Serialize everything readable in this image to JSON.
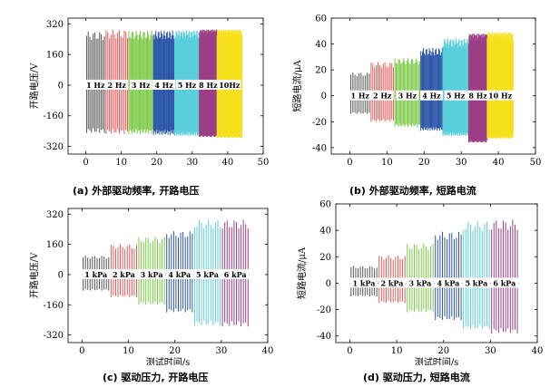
{
  "colors": {
    "seg1": "#555555",
    "seg2": "#e25a5a",
    "seg3": "#7ac943",
    "seg4": "#2b55a8",
    "seg5": "#5bcfdc",
    "seg6": "#9b3f86",
    "seg7": "#f7e11c"
  },
  "chart_data": [
    {
      "id": "a",
      "type": "line",
      "style": "oscillation",
      "ylabel": "开路电压/V",
      "xlabel": "测试时间/s",
      "xlim": [
        -5,
        50
      ],
      "xticks": [
        0,
        10,
        20,
        30,
        40,
        50
      ],
      "ylim": [
        -360,
        350
      ],
      "yticks": [
        320,
        160,
        0,
        -160,
        -320
      ],
      "caption": "(a) 外部驱动频率, 开路电压",
      "segments": [
        {
          "label": "1 Hz",
          "start": 0,
          "end": 5.5,
          "amp_pos": 280,
          "amp_neg": -250,
          "color": "#555555",
          "n": 12
        },
        {
          "label": "2 Hz",
          "start": 5.5,
          "end": 12,
          "amp_pos": 290,
          "amp_neg": -255,
          "color": "#e25a5a",
          "n": 14
        },
        {
          "label": "3 Hz",
          "start": 12,
          "end": 19,
          "amp_pos": 285,
          "amp_neg": -255,
          "color": "#7ac943",
          "n": 24
        },
        {
          "label": "4 Hz",
          "start": 19,
          "end": 25,
          "amp_pos": 285,
          "amp_neg": -260,
          "color": "#2b55a8",
          "n": 28
        },
        {
          "label": "5 Hz",
          "start": 25,
          "end": 32,
          "amp_pos": 285,
          "amp_neg": -265,
          "color": "#5bcfdc",
          "n": 36
        },
        {
          "label": "8 Hz",
          "start": 32,
          "end": 37,
          "amp_pos": 290,
          "amp_neg": -270,
          "color": "#9b3f86",
          "n": 48
        },
        {
          "label": "10Hz",
          "start": 37,
          "end": 44,
          "amp_pos": 290,
          "amp_neg": -275,
          "color": "#f7e11c",
          "n": 64
        }
      ]
    },
    {
      "id": "b",
      "type": "line",
      "style": "oscillation",
      "ylabel": "短路电流/μA",
      "xlabel": "测试时间/s",
      "xlim": [
        -5,
        50
      ],
      "xticks": [
        0,
        10,
        20,
        30,
        40,
        50
      ],
      "ylim": [
        -45,
        60
      ],
      "yticks": [
        60,
        40,
        20,
        0,
        -20,
        -40
      ],
      "caption": "(b) 外部驱动频率, 短路电流",
      "segments": [
        {
          "label": "1 Hz",
          "start": 0,
          "end": 5.5,
          "amp_pos": 18,
          "amp_neg": -14,
          "color": "#555555",
          "n": 10
        },
        {
          "label": "2 Hz",
          "start": 5.5,
          "end": 12,
          "amp_pos": 26,
          "amp_neg": -20,
          "color": "#e25a5a",
          "n": 14
        },
        {
          "label": "3 Hz",
          "start": 12,
          "end": 19,
          "amp_pos": 29,
          "amp_neg": -24,
          "color": "#7ac943",
          "n": 22
        },
        {
          "label": "4 Hz",
          "start": 19,
          "end": 25,
          "amp_pos": 37,
          "amp_neg": -27,
          "color": "#2b55a8",
          "n": 26
        },
        {
          "label": "5 Hz",
          "start": 25,
          "end": 32,
          "amp_pos": 44,
          "amp_neg": -31,
          "color": "#5bcfdc",
          "n": 34
        },
        {
          "label": "8 Hz",
          "start": 32,
          "end": 37,
          "amp_pos": 48,
          "amp_neg": -36,
          "color": "#9b3f86",
          "n": 44
        },
        {
          "label": "10 Hz",
          "start": 37,
          "end": 44,
          "amp_pos": 49,
          "amp_neg": -33,
          "color": "#f7e11c",
          "n": 60
        }
      ]
    },
    {
      "id": "c",
      "type": "line",
      "style": "oscillation",
      "ylabel": "开路电压/V",
      "xlabel": "测试时间/s",
      "xlim": [
        -3,
        40
      ],
      "xticks": [
        0,
        10,
        20,
        30,
        40
      ],
      "ylim": [
        -360,
        350
      ],
      "yticks": [
        320,
        160,
        0,
        -160,
        -320
      ],
      "caption": "(c) 驱动压力, 开路电压",
      "segments": [
        {
          "label": "1 kPa",
          "start": 0,
          "end": 6,
          "amp_pos": 100,
          "amp_neg": -85,
          "color": "#555555",
          "n": 12
        },
        {
          "label": "2 kPa",
          "start": 6,
          "end": 12,
          "amp_pos": 160,
          "amp_neg": -120,
          "color": "#e25a5a",
          "n": 12
        },
        {
          "label": "3 kPa",
          "start": 12,
          "end": 18,
          "amp_pos": 200,
          "amp_neg": -160,
          "color": "#7ac943",
          "n": 12
        },
        {
          "label": "4 kPa",
          "start": 18,
          "end": 24,
          "amp_pos": 230,
          "amp_neg": -200,
          "color": "#2b55a8",
          "n": 12
        },
        {
          "label": "5 kPa",
          "start": 24,
          "end": 30,
          "amp_pos": 290,
          "amp_neg": -270,
          "color": "#5bcfdc",
          "n": 12
        },
        {
          "label": "6 kPa",
          "start": 30,
          "end": 36,
          "amp_pos": 290,
          "amp_neg": -275,
          "color": "#9b3f86",
          "n": 12
        }
      ]
    },
    {
      "id": "d",
      "type": "line",
      "style": "oscillation",
      "ylabel": "短路电流/μA",
      "xlabel": "测试时间/s",
      "xlim": [
        -3,
        40
      ],
      "xticks": [
        0,
        10,
        20,
        30,
        40
      ],
      "ylim": [
        -45,
        60
      ],
      "yticks": [
        60,
        40,
        20,
        0,
        -20,
        -40
      ],
      "caption": "(d) 驱动压力, 短路电流",
      "segments": [
        {
          "label": "1 kPa",
          "start": 0,
          "end": 6,
          "amp_pos": 13,
          "amp_neg": -10,
          "color": "#555555",
          "n": 12
        },
        {
          "label": "2 kPa",
          "start": 6,
          "end": 12,
          "amp_pos": 21,
          "amp_neg": -15,
          "color": "#e25a5a",
          "n": 12
        },
        {
          "label": "3 kPa",
          "start": 12,
          "end": 18,
          "amp_pos": 30,
          "amp_neg": -22,
          "color": "#7ac943",
          "n": 12
        },
        {
          "label": "4 kPa",
          "start": 18,
          "end": 24,
          "amp_pos": 39,
          "amp_neg": -28,
          "color": "#2b55a8",
          "n": 12
        },
        {
          "label": "5 kPa",
          "start": 24,
          "end": 30,
          "amp_pos": 47,
          "amp_neg": -35,
          "color": "#5bcfdc",
          "n": 12
        },
        {
          "label": "6 kPa",
          "start": 30,
          "end": 36,
          "amp_pos": 48,
          "amp_neg": -38,
          "color": "#9b3f86",
          "n": 12
        }
      ]
    }
  ]
}
